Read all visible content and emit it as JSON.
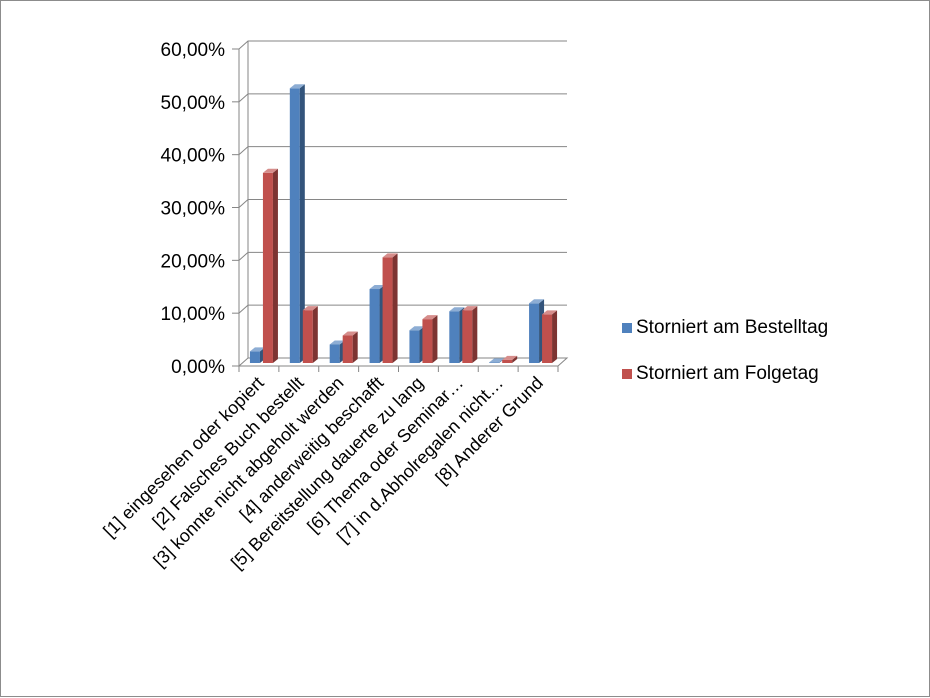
{
  "chart_data": {
    "type": "bar",
    "title": "",
    "xlabel": "",
    "ylabel": "",
    "ylim": [
      0,
      0.6
    ],
    "yticks": [
      0,
      0.1,
      0.2,
      0.3,
      0.4,
      0.5,
      0.6
    ],
    "ytick_labels": [
      "0,00%",
      "10,00%",
      "20,00%",
      "30,00%",
      "40,00%",
      "50,00%",
      "60,00%"
    ],
    "grid": true,
    "legend_position": "right",
    "categories": [
      "[1] eingesehen oder kopiert",
      "[2] Falsches Buch bestellt",
      "[3] konnte nicht abgeholt werden",
      "[4] anderweitig beschafft",
      "[5] Bereitstellung dauerte zu lang",
      "[6] Thema oder Seminar…",
      "[7] in d.Abholregalen nicht…",
      "[8] Anderer Grund"
    ],
    "series": [
      {
        "name": "Storniert am Bestelltag",
        "color": "#4f81bd",
        "values": [
          0.022,
          0.52,
          0.035,
          0.14,
          0.062,
          0.098,
          0.0,
          0.113
        ]
      },
      {
        "name": "Storniert am Folgetag",
        "color": "#c0504d",
        "values": [
          0.36,
          0.1,
          0.052,
          0.2,
          0.083,
          0.1,
          0.006,
          0.092
        ]
      }
    ]
  }
}
